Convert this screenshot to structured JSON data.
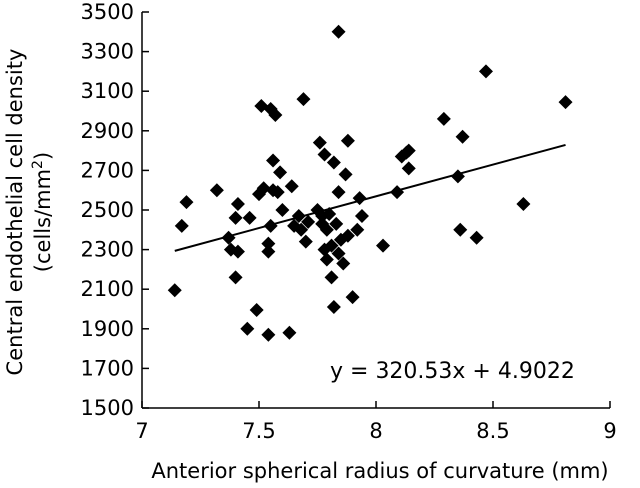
{
  "chart_data": {
    "type": "scatter",
    "xlabel": "Anterior spherical radius of curvature (mm)",
    "ylabel_line1": "Central endothelial cell density",
    "ylabel_line2": "(cells/mm",
    "ylabel_sup": "2",
    "ylabel_close": ")",
    "xlim": [
      7,
      9
    ],
    "ylim": [
      1500,
      3500
    ],
    "xticks": [
      7,
      7.5,
      8,
      8.5,
      9
    ],
    "xtick_labels": [
      "7",
      "7.5",
      "8",
      "8.5",
      "9"
    ],
    "yticks": [
      1500,
      1700,
      1900,
      2100,
      2300,
      2500,
      2700,
      2900,
      3100,
      3300,
      3500
    ],
    "ytick_labels": [
      "1500",
      "1700",
      "1900",
      "2100",
      "2300",
      "2500",
      "2700",
      "2900",
      "3100",
      "3300",
      "3500"
    ],
    "grid": false,
    "legend": "none",
    "marker": "diamond",
    "marker_color": "#000000",
    "annotation": "y = 320.53x + 4.9022",
    "trendline": {
      "slope": 320.53,
      "intercept": 4.9022,
      "x_start": 7.14,
      "x_end": 8.81
    },
    "points": [
      {
        "x": 7.14,
        "y": 2095
      },
      {
        "x": 7.17,
        "y": 2420
      },
      {
        "x": 7.19,
        "y": 2540
      },
      {
        "x": 7.32,
        "y": 2600
      },
      {
        "x": 7.37,
        "y": 2360
      },
      {
        "x": 7.38,
        "y": 2300
      },
      {
        "x": 7.4,
        "y": 2160
      },
      {
        "x": 7.4,
        "y": 2460
      },
      {
        "x": 7.41,
        "y": 2290
      },
      {
        "x": 7.41,
        "y": 2530
      },
      {
        "x": 7.45,
        "y": 1900
      },
      {
        "x": 7.46,
        "y": 2460
      },
      {
        "x": 7.49,
        "y": 1995
      },
      {
        "x": 7.5,
        "y": 2580
      },
      {
        "x": 7.51,
        "y": 3025
      },
      {
        "x": 7.52,
        "y": 2610
      },
      {
        "x": 7.54,
        "y": 1870
      },
      {
        "x": 7.54,
        "y": 2290
      },
      {
        "x": 7.54,
        "y": 2330
      },
      {
        "x": 7.55,
        "y": 2420
      },
      {
        "x": 7.55,
        "y": 3010
      },
      {
        "x": 7.56,
        "y": 2600
      },
      {
        "x": 7.56,
        "y": 2750
      },
      {
        "x": 7.57,
        "y": 2980
      },
      {
        "x": 7.58,
        "y": 2590
      },
      {
        "x": 7.59,
        "y": 2690
      },
      {
        "x": 7.6,
        "y": 2500
      },
      {
        "x": 7.63,
        "y": 1880
      },
      {
        "x": 7.64,
        "y": 2620
      },
      {
        "x": 7.65,
        "y": 2420
      },
      {
        "x": 7.67,
        "y": 2470
      },
      {
        "x": 7.68,
        "y": 2400
      },
      {
        "x": 7.69,
        "y": 3060
      },
      {
        "x": 7.7,
        "y": 2340
      },
      {
        "x": 7.71,
        "y": 2440
      },
      {
        "x": 7.75,
        "y": 2500
      },
      {
        "x": 7.76,
        "y": 2840
      },
      {
        "x": 7.77,
        "y": 2470
      },
      {
        "x": 7.77,
        "y": 2430
      },
      {
        "x": 7.78,
        "y": 2300
      },
      {
        "x": 7.78,
        "y": 2780
      },
      {
        "x": 7.79,
        "y": 2250
      },
      {
        "x": 7.79,
        "y": 2400
      },
      {
        "x": 7.8,
        "y": 2480
      },
      {
        "x": 7.81,
        "y": 2160
      },
      {
        "x": 7.81,
        "y": 2320
      },
      {
        "x": 7.82,
        "y": 2010
      },
      {
        "x": 7.82,
        "y": 2740
      },
      {
        "x": 7.83,
        "y": 2430
      },
      {
        "x": 7.84,
        "y": 3400
      },
      {
        "x": 7.84,
        "y": 2590
      },
      {
        "x": 7.84,
        "y": 2280
      },
      {
        "x": 7.85,
        "y": 2350
      },
      {
        "x": 7.86,
        "y": 2230
      },
      {
        "x": 7.87,
        "y": 2680
      },
      {
        "x": 7.88,
        "y": 2850
      },
      {
        "x": 7.88,
        "y": 2370
      },
      {
        "x": 7.9,
        "y": 2060
      },
      {
        "x": 7.92,
        "y": 2400
      },
      {
        "x": 7.93,
        "y": 2560
      },
      {
        "x": 7.94,
        "y": 2470
      },
      {
        "x": 8.03,
        "y": 2320
      },
      {
        "x": 8.09,
        "y": 2590
      },
      {
        "x": 8.11,
        "y": 2770
      },
      {
        "x": 8.13,
        "y": 2790
      },
      {
        "x": 8.14,
        "y": 2710
      },
      {
        "x": 8.14,
        "y": 2800
      },
      {
        "x": 8.29,
        "y": 2960
      },
      {
        "x": 8.35,
        "y": 2670
      },
      {
        "x": 8.36,
        "y": 2400
      },
      {
        "x": 8.37,
        "y": 2870
      },
      {
        "x": 8.43,
        "y": 2360
      },
      {
        "x": 8.47,
        "y": 3200
      },
      {
        "x": 8.63,
        "y": 2530
      },
      {
        "x": 8.81,
        "y": 3045
      }
    ]
  }
}
